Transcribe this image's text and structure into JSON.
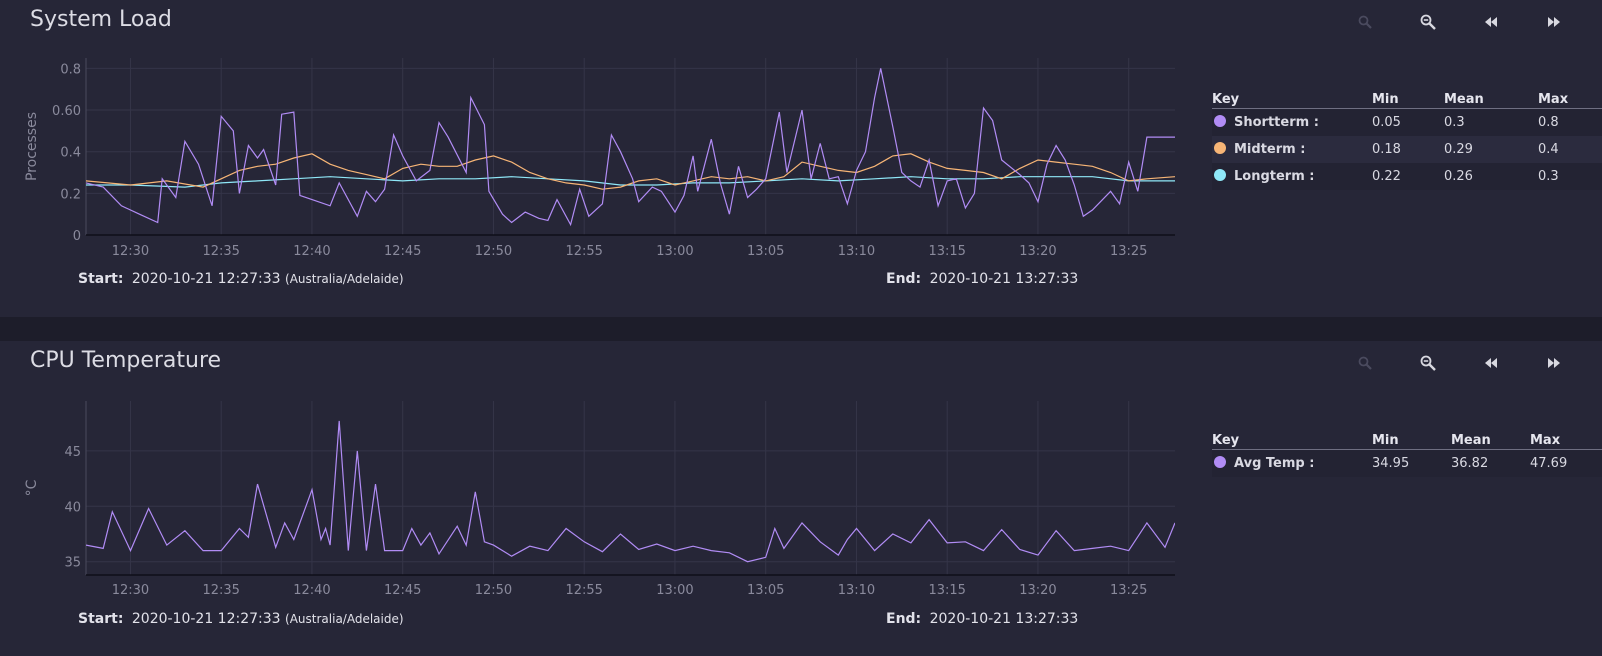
{
  "toolbar": {
    "icons": [
      "zoom-in-icon",
      "zoom-out-icon",
      "rewind-icon",
      "fast-forward-icon"
    ]
  },
  "range_labels": {
    "start": "Start:",
    "end": "End:"
  },
  "panels": [
    {
      "title": "System Load",
      "start": "2020-10-21 12:27:33",
      "timezone": "(Australia/Adelaide)",
      "end": "2020-10-21 13:27:33",
      "legend": {
        "headers": [
          "Key",
          "Min",
          "Mean",
          "Max"
        ],
        "rows": [
          {
            "key": "Shortterm :",
            "min": "0.05",
            "mean": "0.3",
            "max": "0.8",
            "color": "#b18cf5"
          },
          {
            "key": "Midterm :",
            "min": "0.18",
            "mean": "0.29",
            "max": "0.4",
            "color": "#f7b576"
          },
          {
            "key": "Longterm :",
            "min": "0.22",
            "mean": "0.26",
            "max": "0.3",
            "color": "#8fe8f8"
          }
        ]
      }
    },
    {
      "title": "CPU Temperature",
      "start": "2020-10-21 12:27:33",
      "timezone": "(Australia/Adelaide)",
      "end": "2020-10-21 13:27:33",
      "legend": {
        "headers": [
          "Key",
          "Min",
          "Mean",
          "Max"
        ],
        "rows": [
          {
            "key": "Avg Temp :",
            "min": "34.95",
            "mean": "36.82",
            "max": "47.69",
            "color": "#b18cf5"
          }
        ]
      }
    }
  ],
  "chart_data": [
    {
      "type": "line",
      "title": "System Load",
      "ylabel": "Processes",
      "xlabel": "",
      "x_range": [
        "12:27:33",
        "13:27:33"
      ],
      "x_ticks": [
        "12:30",
        "12:35",
        "12:40",
        "12:45",
        "12:50",
        "12:55",
        "13:00",
        "13:05",
        "13:10",
        "13:15",
        "13:20",
        "13:25"
      ],
      "y_ticks": [
        "0",
        "0.2",
        "0.4",
        "0.60",
        "0.8"
      ],
      "ylim": [
        0,
        0.85
      ],
      "grid": true,
      "series": [
        {
          "name": "Shortterm",
          "color": "#b18cf5",
          "x": [
            "12:27:33",
            "12:28:30",
            "12:29:30",
            "12:30:30",
            "12:31:30",
            "12:31:45",
            "12:32:30",
            "12:33:00",
            "12:33:45",
            "12:34:30",
            "12:35:00",
            "12:35:40",
            "12:36:00",
            "12:36:30",
            "12:37:00",
            "12:37:20",
            "12:38:00",
            "12:38:20",
            "12:39:00",
            "12:39:20",
            "12:40:00",
            "12:41:00",
            "12:41:30",
            "12:42:30",
            "12:43:00",
            "12:43:30",
            "12:44:00",
            "12:44:30",
            "12:45:00",
            "12:45:45",
            "12:46:30",
            "12:47:00",
            "12:47:30",
            "12:48:30",
            "12:48:45",
            "12:49:30",
            "12:49:45",
            "12:50:30",
            "12:51:00",
            "12:51:45",
            "12:52:30",
            "12:53:00",
            "12:53:30",
            "12:54:15",
            "12:54:45",
            "12:55:15",
            "12:56:00",
            "12:56:30",
            "12:57:00",
            "12:57:40",
            "12:58:00",
            "12:58:45",
            "12:59:15",
            "13:00:00",
            "13:00:30",
            "13:01:00",
            "13:01:15",
            "13:02:00",
            "13:02:30",
            "13:03:00",
            "13:03:30",
            "13:04:00",
            "13:04:30",
            "13:05:00",
            "13:05:45",
            "13:06:10",
            "13:07:00",
            "13:07:30",
            "13:08:00",
            "13:08:30",
            "13:09:00",
            "13:09:30",
            "13:10:00",
            "13:10:30",
            "13:11:00",
            "13:11:20",
            "13:12:00",
            "13:12:30",
            "13:13:00",
            "13:13:30",
            "13:14:00",
            "13:14:30",
            "13:15:00",
            "13:15:30",
            "13:16:00",
            "13:16:30",
            "13:17:00",
            "13:17:30",
            "13:18:00",
            "13:19:00",
            "13:19:30",
            "13:20:00",
            "13:20:30",
            "13:21:00",
            "13:21:30",
            "13:22:00",
            "13:22:30",
            "13:23:00",
            "13:24:00",
            "13:24:30",
            "13:25:00",
            "13:25:30",
            "13:26:00",
            "13:26:30",
            "13:27:00",
            "13:27:33"
          ],
          "y": [
            0.25,
            0.23,
            0.14,
            0.1,
            0.06,
            0.27,
            0.18,
            0.45,
            0.34,
            0.14,
            0.57,
            0.5,
            0.2,
            0.43,
            0.37,
            0.41,
            0.24,
            0.58,
            0.59,
            0.19,
            0.17,
            0.14,
            0.25,
            0.09,
            0.21,
            0.16,
            0.22,
            0.48,
            0.38,
            0.26,
            0.31,
            0.54,
            0.47,
            0.3,
            0.66,
            0.53,
            0.21,
            0.1,
            0.06,
            0.11,
            0.08,
            0.07,
            0.17,
            0.05,
            0.22,
            0.09,
            0.15,
            0.48,
            0.4,
            0.27,
            0.16,
            0.23,
            0.21,
            0.11,
            0.19,
            0.38,
            0.21,
            0.46,
            0.25,
            0.1,
            0.33,
            0.18,
            0.22,
            0.27,
            0.59,
            0.3,
            0.6,
            0.27,
            0.44,
            0.27,
            0.28,
            0.15,
            0.31,
            0.4,
            0.66,
            0.8,
            0.52,
            0.3,
            0.26,
            0.23,
            0.36,
            0.14,
            0.26,
            0.27,
            0.13,
            0.2,
            0.61,
            0.55,
            0.36,
            0.29,
            0.25,
            0.16,
            0.34,
            0.43,
            0.36,
            0.24,
            0.09,
            0.12,
            0.21,
            0.15,
            0.35,
            0.21,
            0.47,
            0.47,
            0.47,
            0.47
          ]
        },
        {
          "name": "Midterm",
          "color": "#f7b576",
          "x": [
            "12:27:33",
            "12:30:00",
            "12:32:00",
            "12:34:00",
            "12:36:00",
            "12:37:00",
            "12:38:00",
            "12:39:00",
            "12:40:00",
            "12:41:00",
            "12:42:00",
            "12:43:00",
            "12:44:00",
            "12:45:00",
            "12:46:00",
            "12:47:00",
            "12:48:00",
            "12:49:00",
            "12:50:00",
            "12:51:00",
            "12:52:00",
            "12:53:00",
            "12:54:00",
            "12:55:00",
            "12:56:00",
            "12:57:00",
            "12:58:00",
            "12:59:00",
            "13:00:00",
            "13:01:00",
            "13:02:00",
            "13:03:00",
            "13:04:00",
            "13:05:00",
            "13:06:00",
            "13:07:00",
            "13:08:00",
            "13:09:00",
            "13:10:00",
            "13:11:00",
            "13:12:00",
            "13:13:00",
            "13:14:00",
            "13:15:00",
            "13:16:00",
            "13:17:00",
            "13:18:00",
            "13:19:00",
            "13:20:00",
            "13:21:00",
            "13:22:00",
            "13:23:00",
            "13:24:00",
            "13:25:00",
            "13:26:00",
            "13:27:33"
          ],
          "y": [
            0.26,
            0.24,
            0.26,
            0.23,
            0.31,
            0.33,
            0.34,
            0.37,
            0.39,
            0.34,
            0.31,
            0.29,
            0.27,
            0.32,
            0.34,
            0.33,
            0.33,
            0.36,
            0.38,
            0.35,
            0.3,
            0.27,
            0.25,
            0.24,
            0.22,
            0.23,
            0.26,
            0.27,
            0.24,
            0.26,
            0.28,
            0.27,
            0.28,
            0.26,
            0.28,
            0.35,
            0.33,
            0.31,
            0.3,
            0.33,
            0.38,
            0.39,
            0.35,
            0.32,
            0.31,
            0.3,
            0.27,
            0.32,
            0.36,
            0.35,
            0.34,
            0.33,
            0.3,
            0.26,
            0.27,
            0.28
          ]
        },
        {
          "name": "Longterm",
          "color": "#8fe8f8",
          "x": [
            "12:27:33",
            "12:30:00",
            "12:33:00",
            "12:35:00",
            "12:37:00",
            "12:39:00",
            "12:41:00",
            "12:43:00",
            "12:45:00",
            "12:47:00",
            "12:49:00",
            "12:51:00",
            "12:53:00",
            "12:55:00",
            "12:57:00",
            "12:59:00",
            "13:01:00",
            "13:03:00",
            "13:05:00",
            "13:07:00",
            "13:09:00",
            "13:11:00",
            "13:13:00",
            "13:15:00",
            "13:17:00",
            "13:19:00",
            "13:21:00",
            "13:23:00",
            "13:25:00",
            "13:27:33"
          ],
          "y": [
            0.24,
            0.24,
            0.23,
            0.25,
            0.26,
            0.27,
            0.28,
            0.27,
            0.26,
            0.27,
            0.27,
            0.28,
            0.27,
            0.26,
            0.24,
            0.24,
            0.25,
            0.25,
            0.26,
            0.27,
            0.26,
            0.27,
            0.28,
            0.27,
            0.27,
            0.28,
            0.28,
            0.28,
            0.26,
            0.26
          ]
        }
      ]
    },
    {
      "type": "line",
      "title": "CPU Temperature",
      "ylabel": "°C",
      "xlabel": "",
      "x_range": [
        "12:27:33",
        "13:27:33"
      ],
      "x_ticks": [
        "12:30",
        "12:35",
        "12:40",
        "12:45",
        "12:50",
        "12:55",
        "13:00",
        "13:05",
        "13:10",
        "13:15",
        "13:20",
        "13:25"
      ],
      "y_ticks": [
        "35",
        "40",
        "45"
      ],
      "ylim": [
        33.8,
        49.5
      ],
      "grid": true,
      "series": [
        {
          "name": "Avg Temp",
          "color": "#b18cf5",
          "x": [
            "12:27:33",
            "12:28:30",
            "12:29:00",
            "12:30:00",
            "12:31:00",
            "12:32:00",
            "12:33:00",
            "12:34:00",
            "12:35:00",
            "12:36:00",
            "12:36:30",
            "12:37:00",
            "12:38:00",
            "12:38:30",
            "12:39:00",
            "12:40:00",
            "12:40:30",
            "12:40:45",
            "12:41:00",
            "12:41:30",
            "12:42:00",
            "12:42:30",
            "12:43:00",
            "12:43:30",
            "12:44:00",
            "12:45:00",
            "12:45:30",
            "12:46:00",
            "12:46:30",
            "12:47:00",
            "12:48:00",
            "12:48:30",
            "12:49:00",
            "12:49:30",
            "12:50:00",
            "12:51:00",
            "12:52:00",
            "12:53:00",
            "12:54:00",
            "12:55:00",
            "12:56:00",
            "12:57:00",
            "12:58:00",
            "12:59:00",
            "13:00:00",
            "13:01:00",
            "13:02:00",
            "13:03:00",
            "13:04:00",
            "13:05:00",
            "13:05:30",
            "13:06:00",
            "13:07:00",
            "13:08:00",
            "13:09:00",
            "13:09:30",
            "13:10:00",
            "13:11:00",
            "13:12:00",
            "13:13:00",
            "13:14:00",
            "13:15:00",
            "13:16:00",
            "13:17:00",
            "13:18:00",
            "13:19:00",
            "13:20:00",
            "13:21:00",
            "13:22:00",
            "13:23:00",
            "13:24:00",
            "13:25:00",
            "13:26:00",
            "13:27:00",
            "13:27:33"
          ],
          "y": [
            36.5,
            36.2,
            39.5,
            36.0,
            39.8,
            36.5,
            37.8,
            36.0,
            36.0,
            38.0,
            37.2,
            42.0,
            36.3,
            38.5,
            37.0,
            41.5,
            37.0,
            38.0,
            36.5,
            47.7,
            36.0,
            45.0,
            36.0,
            42.0,
            36.0,
            36.0,
            38.0,
            36.5,
            37.6,
            35.7,
            38.2,
            36.5,
            41.3,
            36.8,
            36.5,
            35.5,
            36.4,
            36.0,
            38.0,
            36.8,
            35.9,
            37.5,
            36.1,
            36.6,
            36.0,
            36.4,
            36.0,
            35.8,
            35.0,
            35.4,
            38.0,
            36.2,
            38.5,
            36.8,
            35.6,
            37.0,
            38.0,
            36.0,
            37.5,
            36.7,
            38.8,
            36.7,
            36.8,
            36.0,
            37.9,
            36.1,
            35.6,
            37.8,
            36.0,
            36.2,
            36.4,
            36.0,
            38.5,
            36.3,
            38.5
          ]
        }
      ]
    }
  ]
}
